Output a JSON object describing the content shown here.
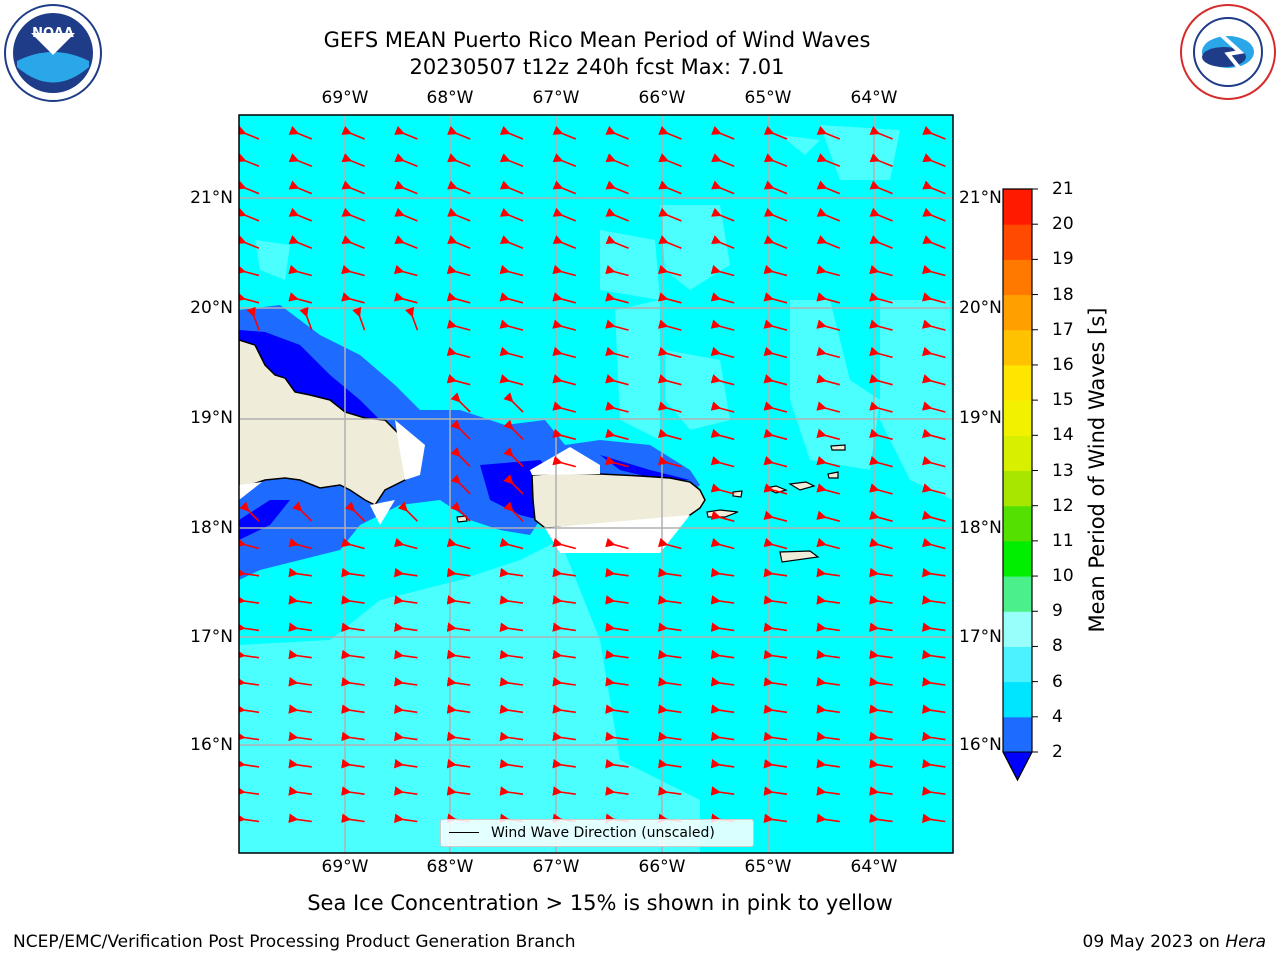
{
  "title_line1": "GEFS MEAN Puerto Rico Mean Period of Wind Waves",
  "title_line2": "20230507 t12z 240h fcst   Max: 7.01",
  "lon_labels": [
    "69°W",
    "68°W",
    "67°W",
    "66°W",
    "65°W",
    "64°W"
  ],
  "lat_labels": [
    "21°N",
    "20°N",
    "19°N",
    "18°N",
    "17°N",
    "16°N"
  ],
  "colorbar": {
    "label": "Mean Period of Wind Waves [s]",
    "ticks": [
      "2",
      "4",
      "6",
      "8",
      "9",
      "10",
      "11",
      "12",
      "13",
      "14",
      "15",
      "16",
      "17",
      "18",
      "19",
      "20",
      "21"
    ],
    "colors": [
      "#1e6cff",
      "#00e5ff",
      "#4cf2ff",
      "#99fffb",
      "#4cf08a",
      "#00ef00",
      "#54e000",
      "#a8e600",
      "#d8f000",
      "#f2f200",
      "#ffe600",
      "#ffc200",
      "#ff9f00",
      "#ff7800",
      "#ff4a00",
      "#ff1a00"
    ],
    "extend_min_color": "#0000ff"
  },
  "legend_label": "Wind Wave Direction (unscaled)",
  "bottom_note": "Sea Ice Concentration > 15% is shown in pink to yellow",
  "footer_left": "NCEP/EMC/Verification Post Processing Product Generation Branch",
  "footer_date": "09 May 2023 on",
  "footer_host": "Hera",
  "logo_left": "noaa-logo",
  "logo_right": "nws-logo",
  "colors": {
    "sea": "#00ffff",
    "arrow": "#ff0000",
    "land": "#efedd9",
    "grid": "#b0b0b0"
  }
}
